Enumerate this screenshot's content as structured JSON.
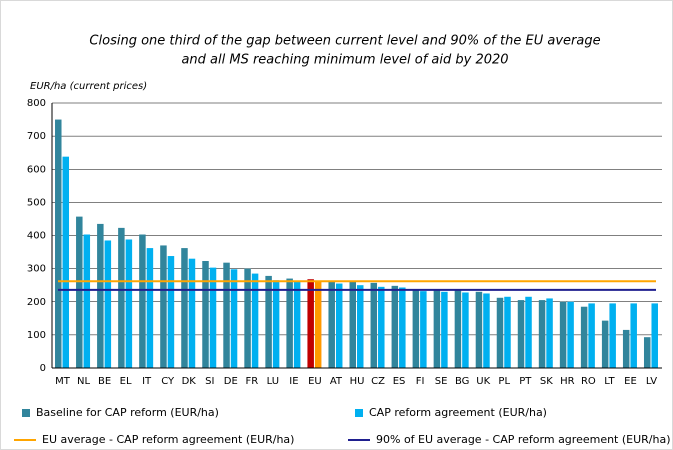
{
  "chart_data": {
    "type": "bar",
    "title": [
      "Closing one third of the gap between current level and 90% of the EU average",
      "and all MS reaching minimum level of aid by 2020"
    ],
    "y_label": "EUR/ha (current prices)",
    "categories": [
      "MT",
      "NL",
      "BE",
      "EL",
      "IT",
      "CY",
      "DK",
      "SI",
      "DE",
      "FR",
      "LU",
      "IE",
      "EU",
      "AT",
      "HU",
      "CZ",
      "ES",
      "FI",
      "SE",
      "BG",
      "UK",
      "PL",
      "PT",
      "SK",
      "HR",
      "RO",
      "LT",
      "EE",
      "LV"
    ],
    "series": [
      {
        "name": "Baseline for CAP reform (EUR/ha)",
        "color": "#31859c",
        "highlight_color": "#c00000",
        "values": [
          750,
          457,
          435,
          423,
          403,
          370,
          362,
          323,
          318,
          300,
          278,
          270,
          268,
          262,
          260,
          257,
          248,
          238,
          236,
          235,
          230,
          212,
          205,
          205,
          200,
          185,
          143,
          115,
          93
        ]
      },
      {
        "name": "CAP reform agreement (EUR/ha)",
        "color": "#00b0f0",
        "highlight_color": "#ff9900",
        "values": [
          638,
          403,
          385,
          388,
          362,
          338,
          330,
          303,
          298,
          285,
          265,
          262,
          262,
          255,
          250,
          245,
          243,
          232,
          230,
          228,
          225,
          215,
          215,
          210,
          200,
          195,
          195,
          195,
          195
        ]
      }
    ],
    "highlight_index": 12,
    "reference_lines": [
      {
        "name": "EU average - CAP reform agreement (EUR/ha)",
        "value": 262,
        "color": "#ffa500"
      },
      {
        "name": "90% of EU average - CAP reform agreement (EUR/ha)",
        "value": 236,
        "color": "#1f1f8f"
      }
    ],
    "ylim": [
      0,
      800
    ],
    "yticks": [
      0,
      100,
      200,
      300,
      400,
      500,
      600,
      700,
      800
    ],
    "grid": true
  }
}
